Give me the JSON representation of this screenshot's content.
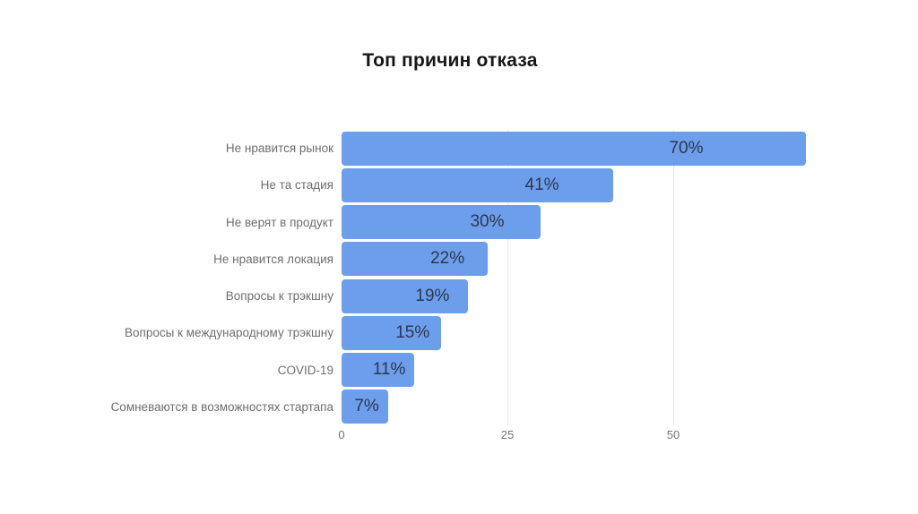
{
  "page": {
    "background_color": "#ffffff"
  },
  "chart_data": {
    "type": "bar",
    "orientation": "horizontal",
    "title": "Топ причин отказа",
    "categories": [
      "Не нравится рынок",
      "Не та стадия",
      "Не верят в продукт",
      "Не нравится локация",
      "Вопросы к трэкшну",
      "Вопросы к международному трэкшну",
      "COVID-19",
      "Сомневаются в возможностях стартапа"
    ],
    "values": [
      70,
      41,
      30,
      22,
      19,
      15,
      11,
      7
    ],
    "value_labels": [
      "70%",
      "41%",
      "30%",
      "22%",
      "19%",
      "15%",
      "11%",
      "7%"
    ],
    "xlabel": "",
    "ylabel": "",
    "x_ticks": [
      0,
      25,
      50
    ],
    "xlim": [
      0,
      73
    ],
    "grid": "vertical major gridlines at 25 and 50, no axis baseline",
    "legend": "none",
    "bar_color": "#6d9eeb",
    "value_label_color": "#2b3850",
    "category_label_color": "#6e6e6e",
    "tick_label_color": "#757575",
    "gridline_color": "#e7e7e7",
    "title_color": "#161616"
  }
}
